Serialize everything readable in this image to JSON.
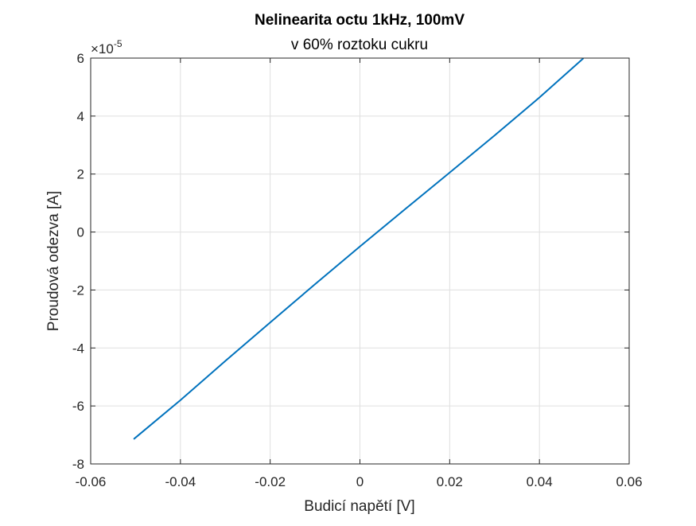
{
  "chart_data": {
    "type": "line",
    "title": "Nelinearita octu 1kHz, 100mV",
    "subtitle": "v 60% roztoku cukru",
    "xlabel": "Budicí napětí [V]",
    "ylabel": "Proudová odezva [A]",
    "y_exponent_label": "×10",
    "y_exponent_power": "-5",
    "xlim": [
      -0.06,
      0.06
    ],
    "ylim": [
      -8,
      6
    ],
    "y_scale_factor": 1e-05,
    "x_ticks": [
      -0.06,
      -0.04,
      -0.02,
      0,
      0.02,
      0.04,
      0.06
    ],
    "x_tick_labels": [
      "-0.06",
      "-0.04",
      "-0.02",
      "0",
      "0.02",
      "0.04",
      "0.06"
    ],
    "y_ticks": [
      -8,
      -6,
      -4,
      -2,
      0,
      2,
      4,
      6
    ],
    "y_tick_labels": [
      "-8",
      "-6",
      "-4",
      "-2",
      "0",
      "2",
      "4",
      "6"
    ],
    "grid": true,
    "series": [
      {
        "color": "#0072BD",
        "x": [
          -0.0503,
          -0.04,
          -0.03,
          -0.02,
          -0.01,
          0,
          0.01,
          0.02,
          0.03,
          0.04,
          0.0497
        ],
        "y": [
          -7.13,
          -5.8,
          -4.45,
          -3.12,
          -1.8,
          -0.5,
          0.78,
          2.05,
          3.33,
          4.64,
          5.98
        ]
      }
    ]
  }
}
